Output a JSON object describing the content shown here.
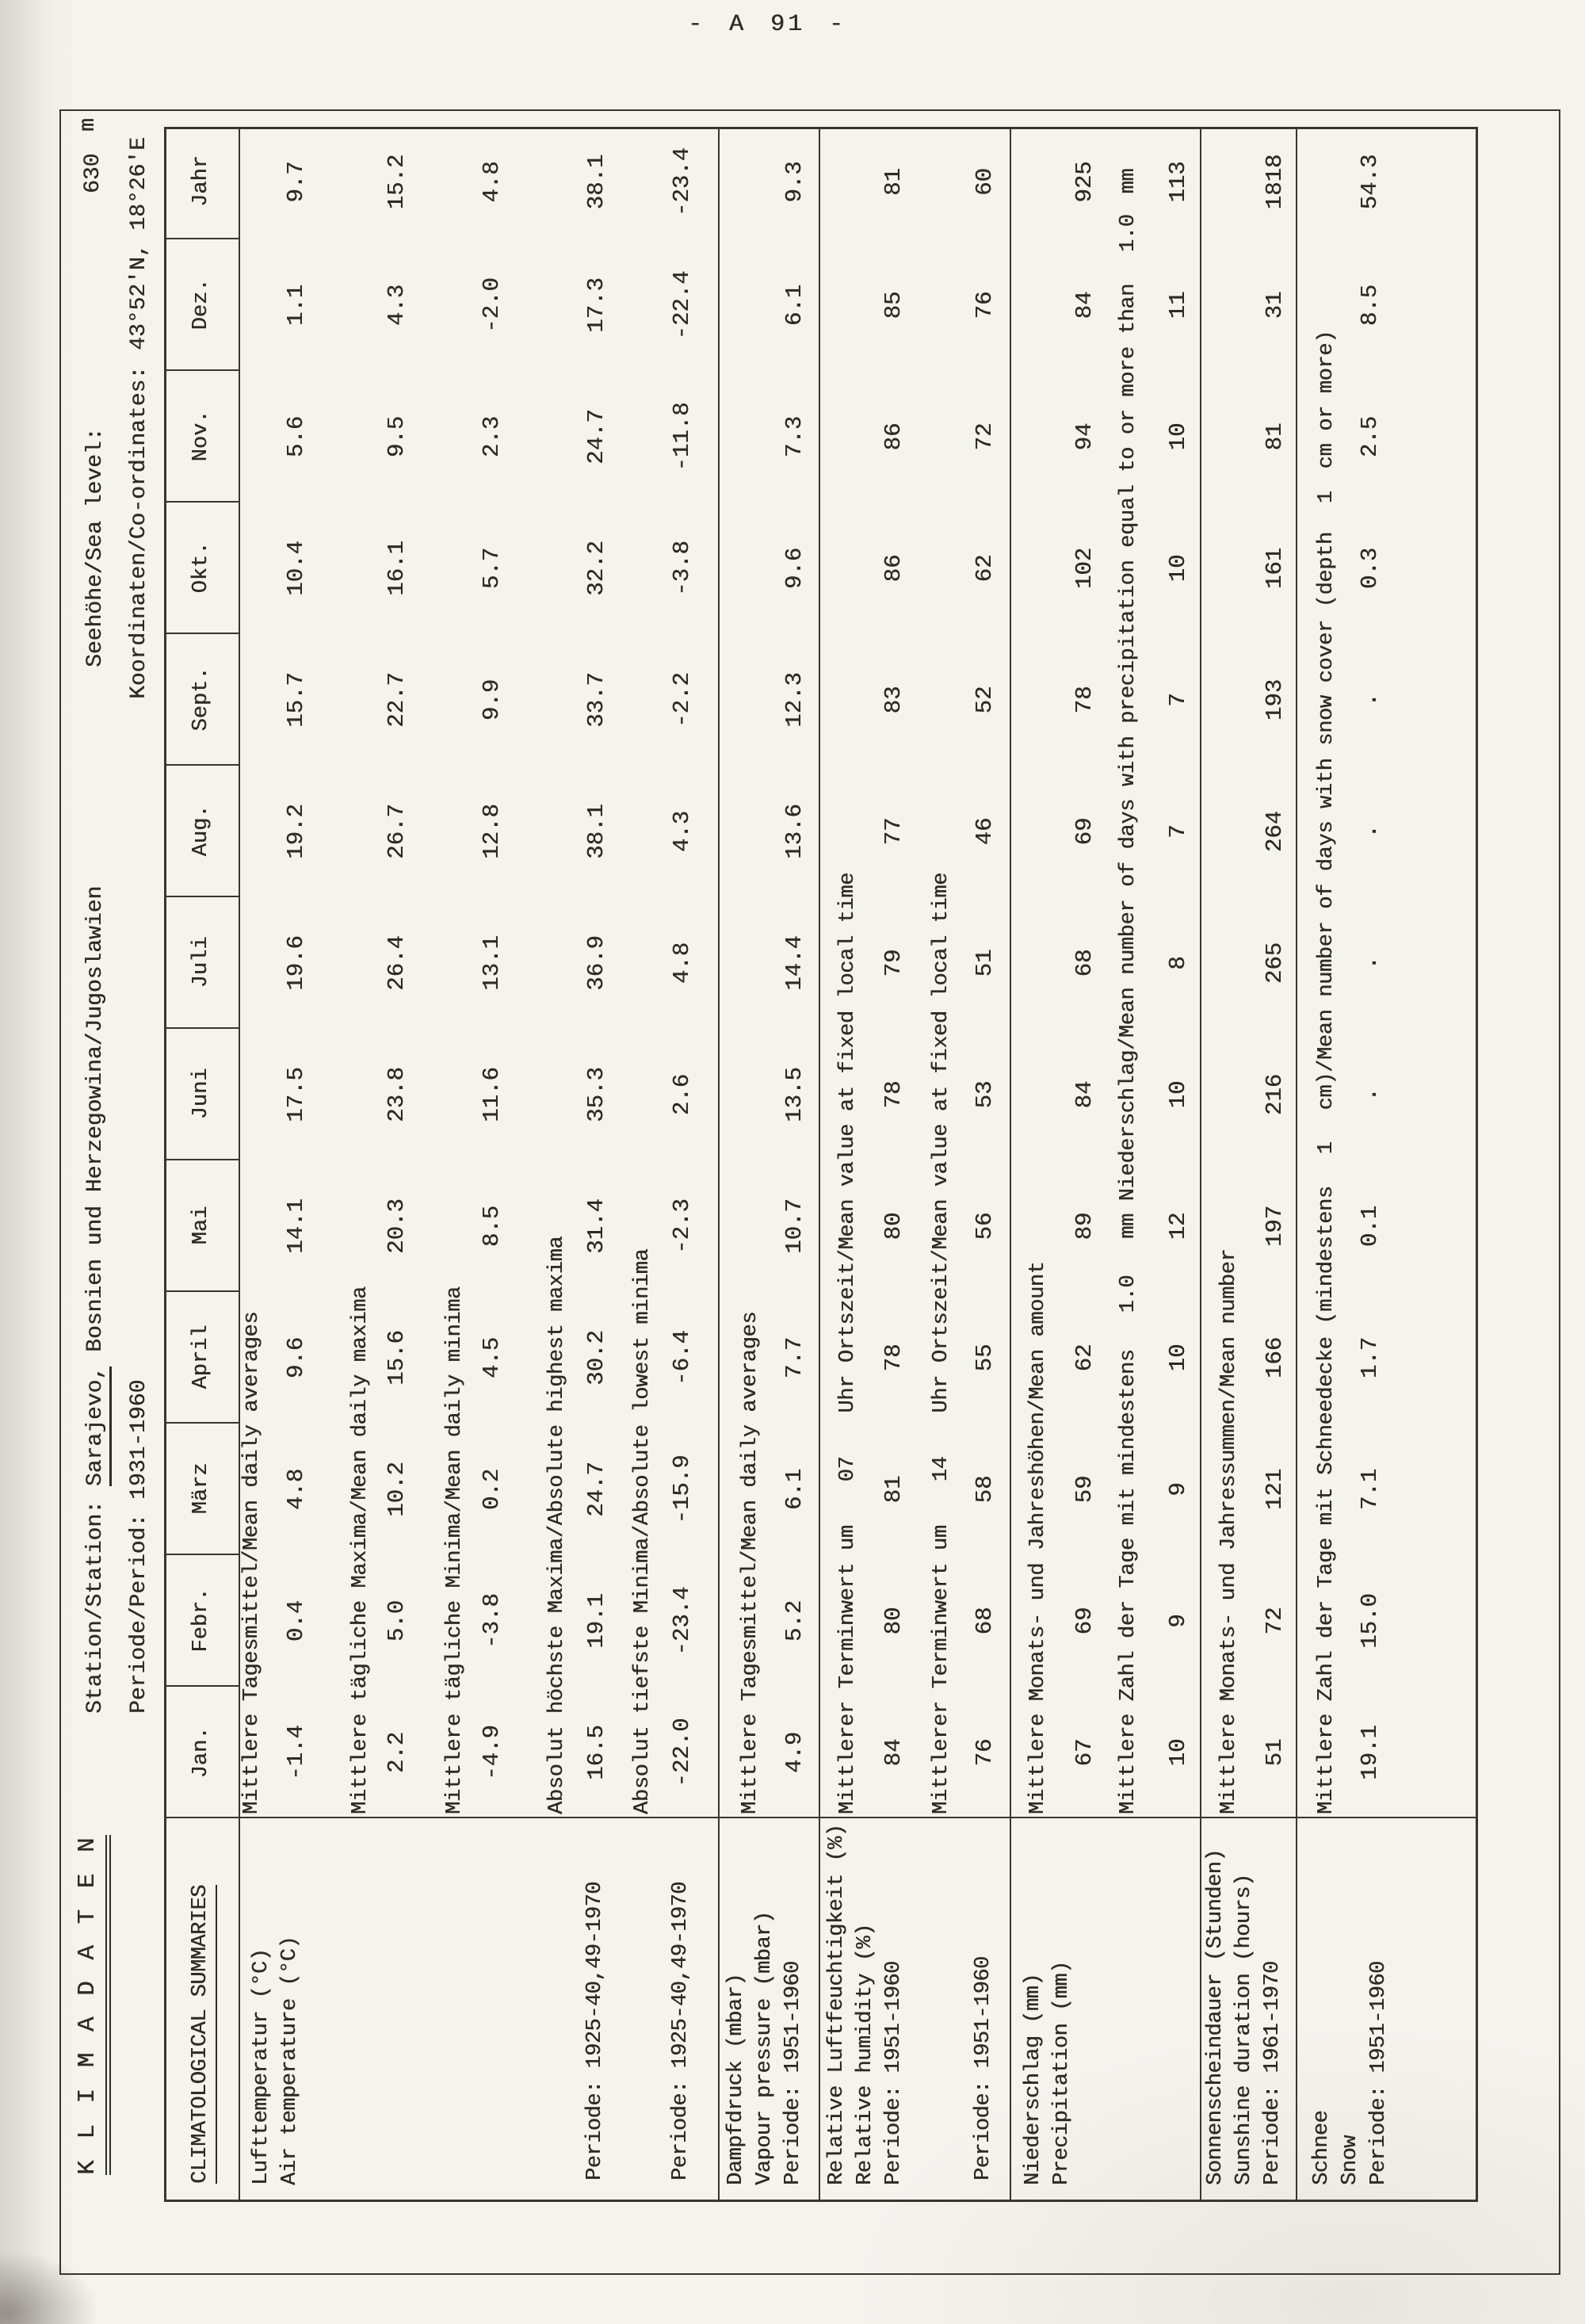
{
  "page": {
    "number": "- A 91 -"
  },
  "header": {
    "title": "K L I M A D A T E N",
    "subtitle": "CLIMATOLOGICAL SUMMARIES",
    "station_label": "Station/Station:",
    "station_value": "Sarajevo,",
    "station_rest": "Bosnien und Herzegowina/Jugoslawien",
    "period_label": "Periode/Period:",
    "period_value": "1931-1960",
    "sealevel_label": "Seehöhe/Sea level:",
    "sealevel_value": "630",
    "sealevel_unit": "m",
    "coords_label": "Koordinaten/Co-ordinates:",
    "coords_value": "43°52'N, 18°26'E"
  },
  "months": [
    "Jan.",
    "Febr.",
    "März",
    "April",
    "Mai",
    "Juni",
    "Juli",
    "Aug.",
    "Sept.",
    "Okt.",
    "Nov.",
    "Dez.",
    "Jahr"
  ],
  "sections": [
    {
      "label_lines": [
        "Lufttemperatur (°C)",
        "Air temperature (°C)"
      ],
      "rows": [
        {
          "label": "Mittlere Tagesmittel/Mean daily averages",
          "values": [
            "-1.4",
            "0.4",
            "4.8",
            "9.6",
            "14.1",
            "17.5",
            "19.6",
            "19.2",
            "15.7",
            "10.4",
            "5.6",
            "1.1",
            "9.7"
          ]
        },
        {
          "label": "Mittlere tägliche Maxima/Mean daily maxima",
          "values": [
            "2.2",
            "5.0",
            "10.2",
            "15.6",
            "20.3",
            "23.8",
            "26.4",
            "26.7",
            "22.7",
            "16.1",
            "9.5",
            "4.3",
            "15.2"
          ]
        },
        {
          "label": "Mittlere tägliche Minima/Mean daily minima",
          "values": [
            "-4.9",
            "-3.8",
            "0.2",
            "4.5",
            "8.5",
            "11.6",
            "13.1",
            "12.8",
            "9.9",
            "5.7",
            "2.3",
            "-2.0",
            "4.8"
          ]
        },
        {
          "side_label": "Periode: 1925-40,49-1970",
          "label": "Absolut höchste Maxima/Absolute highest maxima",
          "values": [
            "16.5",
            "19.1",
            "24.7",
            "30.2",
            "31.4",
            "35.3",
            "36.9",
            "38.1",
            "33.7",
            "32.2",
            "24.7",
            "17.3",
            "38.1"
          ]
        },
        {
          "side_label": "Periode: 1925-40,49-1970",
          "label": "Absolut tiefste Minima/Absolute lowest minima",
          "values": [
            "-22.0",
            "-23.4",
            "-15.9",
            "-6.4",
            "-2.3",
            "2.6",
            "4.8",
            "4.3",
            "-2.2",
            "-3.8",
            "-11.8",
            "-22.4",
            "-23.4"
          ]
        }
      ]
    },
    {
      "label_lines": [
        "Dampfdruck (mbar)",
        "Vapour pressure (mbar)",
        "Periode: 1951-1960"
      ],
      "rows": [
        {
          "label": "Mittlere Tagesmittel/Mean daily averages",
          "values": [
            "4.9",
            "5.2",
            "6.1",
            "7.7",
            "10.7",
            "13.5",
            "14.4",
            "13.6",
            "12.3",
            "9.6",
            "7.3",
            "6.1",
            "9.3"
          ]
        }
      ]
    },
    {
      "label_lines": [
        "Relative Luftfeuchtigkeit (%)",
        "Relative humidity (%)",
        "Periode: 1951-1960"
      ],
      "rows": [
        {
          "label_parts": [
            "Mittlerer Terminwert um",
            "07",
            "Uhr Ortszeit/Mean value at fixed local time"
          ],
          "values": [
            "84",
            "80",
            "81",
            "78",
            "80",
            "78",
            "79",
            "77",
            "83",
            "86",
            "86",
            "85",
            "81"
          ]
        },
        {
          "side_label": "Periode: 1951-1960",
          "label_parts": [
            "Mittlerer Terminwert um",
            "14",
            "Uhr Ortszeit/Mean value at fixed local time"
          ],
          "values": [
            "76",
            "68",
            "58",
            "55",
            "56",
            "53",
            "51",
            "46",
            "52",
            "62",
            "72",
            "76",
            "60"
          ]
        }
      ]
    },
    {
      "label_lines": [
        "Niederschlag (mm)",
        "Precipitation (mm)"
      ],
      "rows": [
        {
          "label": "Mittlere Monats- und Jahreshöhen/Mean amount",
          "values": [
            "67",
            "69",
            "59",
            "62",
            "89",
            "84",
            "68",
            "69",
            "78",
            "102",
            "94",
            "84",
            "925"
          ]
        },
        {
          "label_parts": [
            "Mittlere Zahl der Tage mit mindestens",
            "1.0",
            "mm Niederschlag/Mean number of days with precipitation equal to or more than",
            "1.0",
            "mm"
          ],
          "values": [
            "10",
            "9",
            "9",
            "10",
            "12",
            "10",
            "8",
            "7",
            "7",
            "10",
            "10",
            "11",
            "113"
          ]
        }
      ]
    },
    {
      "label_lines": [
        "Sonnenscheindauer (Stunden)",
        "Sunshine duration (hours)",
        "Periode: 1961-1970"
      ],
      "rows": [
        {
          "label": "Mittlere Monats- und Jahressummen/Mean number",
          "values": [
            "51",
            "72",
            "121",
            "166",
            "197",
            "216",
            "265",
            "264",
            "193",
            "161",
            "81",
            "31",
            "1818"
          ]
        }
      ]
    },
    {
      "label_lines": [
        "Schnee",
        "Snow",
        "Periode: 1951-1960"
      ],
      "rows": [
        {
          "label_parts": [
            "Mittlere Zahl der Tage mit Schneedecke (mindestens",
            "1",
            "cm)/Mean number of days with snow cover (depth",
            "1",
            "cm or more)"
          ],
          "values": [
            "19.1",
            "15.0",
            "7.1",
            "1.7",
            "0.1",
            ".",
            ".",
            ".",
            ".",
            "0.3",
            "2.5",
            "8.5",
            "54.3"
          ]
        }
      ]
    }
  ]
}
